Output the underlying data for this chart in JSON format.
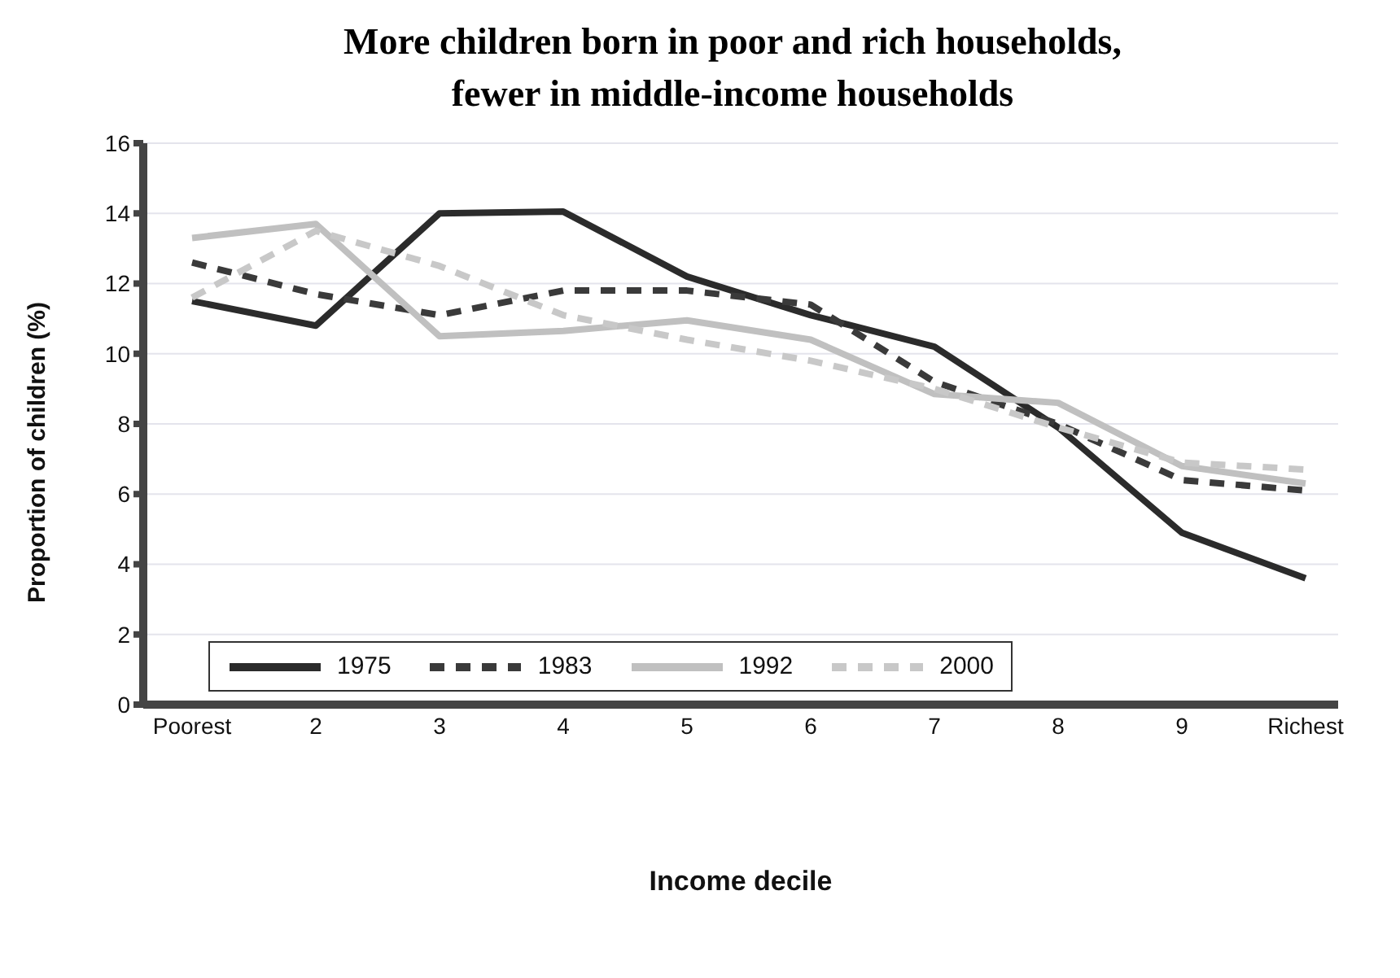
{
  "chart_data": {
    "type": "line",
    "title": "More children born in poor and rich households,\nfewer in middle-income households",
    "xlabel": "Income decile",
    "ylabel": "Proportion of children (%)",
    "categories": [
      "Poorest",
      "2",
      "3",
      "4",
      "5",
      "6",
      "7",
      "8",
      "9",
      "Richest"
    ],
    "series": [
      {
        "name": "1975",
        "color": "#2b2b2b",
        "line_style": "solid",
        "values": [
          11.5,
          10.8,
          14.0,
          14.05,
          12.2,
          11.1,
          10.2,
          7.9,
          4.9,
          3.6
        ]
      },
      {
        "name": "1983",
        "color": "#3a3a3a",
        "line_style": "dashed",
        "values": [
          12.6,
          11.7,
          11.1,
          11.8,
          11.8,
          11.4,
          9.2,
          8.0,
          6.4,
          6.1
        ]
      },
      {
        "name": "1992",
        "color": "#c0c0c0",
        "line_style": "solid",
        "values": [
          13.3,
          13.7,
          10.5,
          10.65,
          10.95,
          10.4,
          8.85,
          8.6,
          6.8,
          6.3
        ]
      },
      {
        "name": "2000",
        "color": "#c8c8c8",
        "line_style": "dashed",
        "values": [
          11.6,
          13.5,
          12.5,
          11.1,
          10.4,
          9.8,
          9.0,
          7.9,
          6.9,
          6.7
        ]
      }
    ],
    "ylim": [
      0,
      16
    ],
    "yticks": [
      0,
      2,
      4,
      6,
      8,
      10,
      12,
      14,
      16
    ],
    "grid": "y",
    "legend": "bottom left",
    "marker": "none"
  }
}
